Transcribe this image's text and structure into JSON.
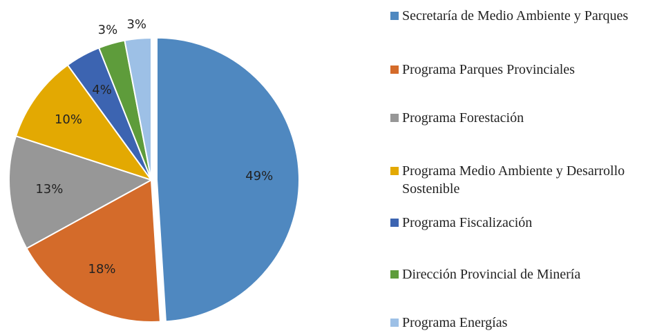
{
  "chart_data": {
    "type": "pie",
    "categories": [
      "Secretaría de Medio Ambiente y Parques",
      "Programa Parques Provinciales",
      "Programa Forestación",
      "Programa Medio Ambiente y Desarrollo Sostenible",
      "Programa Fiscalización",
      "Dirección Provincial de Minería",
      "Programa Energías"
    ],
    "values": [
      49,
      18,
      13,
      10,
      4,
      3,
      3
    ],
    "value_labels": [
      "49%",
      "18%",
      "13%",
      "10%",
      "4%",
      "3%",
      "3%"
    ],
    "colors": [
      "#4f88c0",
      "#d46b2a",
      "#979797",
      "#e3a902",
      "#3c64b1",
      "#5e9c3b",
      "#9dc0e6"
    ],
    "legend": "right"
  }
}
